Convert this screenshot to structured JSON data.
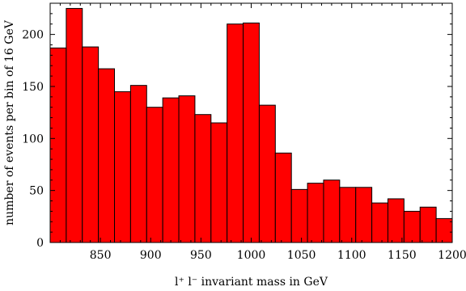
{
  "chart_data": {
    "type": "bar",
    "title": "",
    "xlabel": "l⁺ l⁻ invariant mass in GeV",
    "ylabel": "number of events per bin of 16 GeV",
    "bin_width": 16,
    "xlim": [
      800,
      1200
    ],
    "ylim": [
      0,
      230
    ],
    "x_ticks": [
      850,
      900,
      950,
      1000,
      1050,
      1100,
      1150,
      1200
    ],
    "y_ticks": [
      0,
      50,
      100,
      150,
      200
    ],
    "bin_edges": [
      800,
      816,
      832,
      848,
      864,
      880,
      896,
      912,
      928,
      944,
      960,
      976,
      992,
      1008,
      1024,
      1040,
      1056,
      1072,
      1088,
      1104,
      1120,
      1136,
      1152,
      1168,
      1184,
      1200
    ],
    "values": [
      187,
      225,
      188,
      167,
      145,
      151,
      130,
      139,
      141,
      123,
      115,
      210,
      211,
      132,
      86,
      51,
      57,
      60,
      53,
      53,
      38,
      42,
      30,
      34,
      23
    ],
    "bar_color": "#ff0000",
    "edge_color": "#000000",
    "grid": false
  }
}
